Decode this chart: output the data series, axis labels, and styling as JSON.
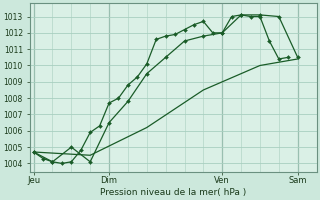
{
  "background_color": "#cce8dc",
  "plot_bg_color": "#daf0e6",
  "grid_color": "#a8cfc0",
  "line_color": "#1a5c28",
  "title": "Pression niveau de la mer( hPa )",
  "ylim": [
    1003.5,
    1013.8
  ],
  "yticks": [
    1004,
    1005,
    1006,
    1007,
    1008,
    1009,
    1010,
    1011,
    1012,
    1013
  ],
  "day_labels": [
    "Jeu",
    "Dim",
    "Ven",
    "Sam"
  ],
  "day_positions": [
    0,
    24,
    60,
    84
  ],
  "line1_x": [
    0,
    3,
    6,
    9,
    12,
    15,
    18,
    21,
    24,
    27,
    30,
    33,
    36,
    39,
    42,
    45,
    48,
    51,
    54,
    57,
    60,
    63,
    66,
    69,
    72,
    75,
    78,
    81
  ],
  "line1_y": [
    1004.7,
    1004.3,
    1004.1,
    1004.0,
    1004.1,
    1004.8,
    1005.9,
    1006.3,
    1007.7,
    1008.0,
    1008.8,
    1009.3,
    1010.1,
    1011.6,
    1011.8,
    1011.9,
    1012.2,
    1012.5,
    1012.7,
    1012.0,
    1012.0,
    1013.0,
    1013.1,
    1013.0,
    1013.0,
    1011.5,
    1010.4,
    1010.5
  ],
  "line2_x": [
    0,
    6,
    12,
    18,
    24,
    30,
    36,
    42,
    48,
    54,
    60,
    66,
    72,
    78,
    84
  ],
  "line2_y": [
    1004.7,
    1004.1,
    1005.0,
    1004.1,
    1006.5,
    1007.8,
    1009.5,
    1010.5,
    1011.5,
    1011.8,
    1012.0,
    1013.1,
    1013.1,
    1013.0,
    1010.5
  ],
  "line3_x": [
    0,
    18,
    36,
    54,
    72,
    84
  ],
  "line3_y": [
    1004.7,
    1004.5,
    1006.2,
    1008.5,
    1010.0,
    1010.4
  ],
  "xlim": [
    -1,
    90
  ],
  "vline_color": "#507060",
  "spine_color": "#6a9080"
}
